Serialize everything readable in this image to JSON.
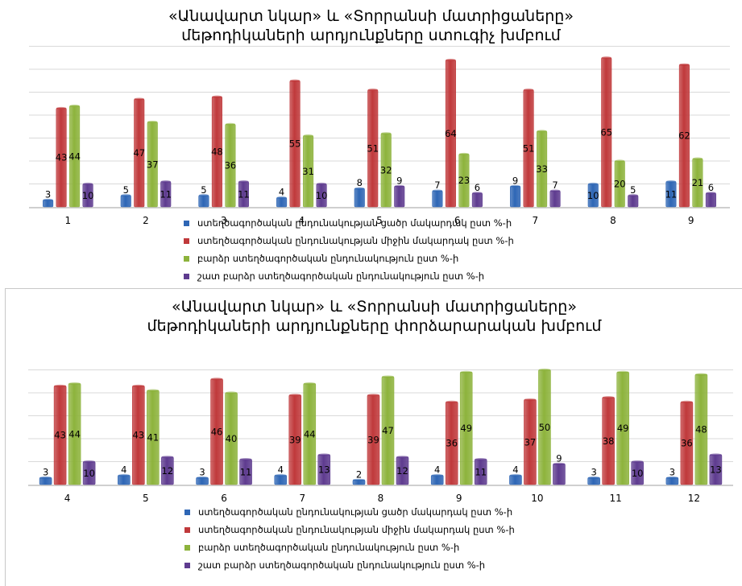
{
  "series_colors": [
    "#2e66b5",
    "#c0393b",
    "#8db33c",
    "#5e3b8f"
  ],
  "chart_data": [
    {
      "type": "bar",
      "title": [
        "«Անավարտ նկար» և «Տորրանսի մատրիցաները»",
        "մեթոդիկաների արդյունքները ստուգիչ խմբում"
      ],
      "categories": [
        "1",
        "2",
        "3",
        "4",
        "5",
        "6",
        "7",
        "8",
        "9"
      ],
      "series": [
        {
          "name": "ստեղծագործական ընդունակության ցածր մակարդակ ըստ %-ի",
          "values": [
            3,
            5,
            5,
            4,
            8,
            7,
            9,
            10,
            11
          ]
        },
        {
          "name": "ստեղծագործական ընդունակության միջին մակարդակ ըստ %-ի",
          "values": [
            43,
            47,
            48,
            55,
            51,
            64,
            51,
            65,
            62
          ]
        },
        {
          "name": "բարձր ստեղծագործական ընդունակություն ըստ %-ի",
          "values": [
            44,
            37,
            36,
            31,
            32,
            23,
            33,
            20,
            21
          ]
        },
        {
          "name": "շատ բարձր ստեղծագործական ընդունակություն ըստ %-ի",
          "values": [
            10,
            11,
            11,
            10,
            9,
            6,
            7,
            5,
            6
          ]
        }
      ],
      "ylim": [
        0,
        70
      ],
      "grid": true,
      "legend": "bottom"
    },
    {
      "type": "bar",
      "title": [
        "«Անավարտ նկար» և «Տորրանսի մատրիցաները»",
        "մեթոդիկաների արդյունքները փորձարարական խմբում"
      ],
      "categories": [
        "4",
        "5",
        "6",
        "7",
        "8",
        "9",
        "10",
        "11",
        "12"
      ],
      "series": [
        {
          "name": "ստեղծագործական ընդունակության ցածր մակարդակ ըստ %-ի",
          "values": [
            3,
            4,
            3,
            4,
            2,
            4,
            4,
            3,
            3
          ]
        },
        {
          "name": "ստեղծագործական ընդունակության միջին մակարդակ ըստ %-ի",
          "values": [
            43,
            43,
            46,
            39,
            39,
            36,
            37,
            38,
            36
          ]
        },
        {
          "name": "բարձր ստեղծագործական ընդունակություն ըստ %-ի",
          "values": [
            44,
            41,
            40,
            44,
            47,
            49,
            50,
            49,
            48
          ]
        },
        {
          "name": "շատ բարձր ստեղծագործական ընդունակություն ըստ %-ի",
          "values": [
            10,
            12,
            11,
            13,
            12,
            11,
            9,
            10,
            13
          ]
        }
      ],
      "ylim": [
        0,
        50
      ],
      "grid": true,
      "legend": "bottom"
    }
  ]
}
